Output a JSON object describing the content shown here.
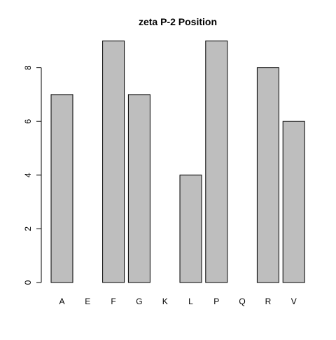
{
  "chart_data": {
    "type": "bar",
    "title": "zeta P-2 Position",
    "xlabel": "",
    "ylabel": "",
    "categories": [
      "A",
      "E",
      "F",
      "G",
      "K",
      "L",
      "P",
      "Q",
      "R",
      "V"
    ],
    "values": [
      7,
      0,
      9,
      7,
      0,
      4,
      9,
      0,
      8,
      6
    ],
    "ylim": [
      0,
      9
    ],
    "yticks": [
      0,
      2,
      4,
      6,
      8
    ],
    "grid": false,
    "legend": "none",
    "bar_fill": "#bebebe",
    "bar_stroke": "#000000"
  }
}
